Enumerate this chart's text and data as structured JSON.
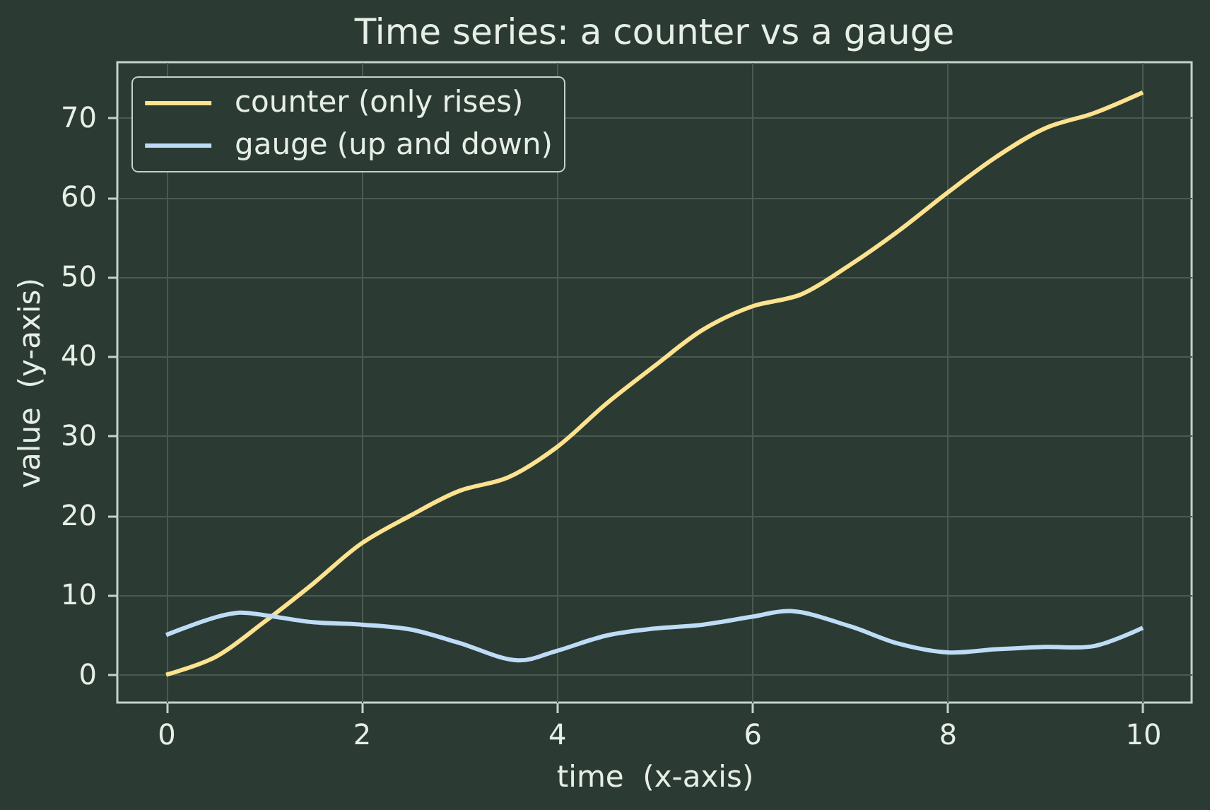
{
  "chart_data": {
    "type": "line",
    "title": "Time series: a counter vs a gauge",
    "xlabel": "time  (x-axis)",
    "ylabel": "value  (y-axis)",
    "x": [
      0,
      0.5,
      1,
      1.5,
      2,
      2.5,
      3,
      3.5,
      4,
      4.5,
      5,
      5.5,
      6,
      6.5,
      7,
      7.5,
      8,
      8.5,
      9,
      9.5,
      10
    ],
    "series": [
      {
        "name": "counter (only rises)",
        "color": "#fde28f",
        "values": [
          0,
          2.2,
          6.6,
          11.4,
          16.5,
          20.0,
          23.1,
          24.8,
          28.6,
          34.0,
          38.8,
          43.4,
          46.3,
          47.8,
          51.5,
          55.8,
          60.6,
          65.1,
          68.7,
          70.6,
          73.2
        ]
      },
      {
        "name": "gauge (up and down)",
        "color": "#bfdcf7",
        "x": [
          0,
          0.5,
          0.75,
          1,
          1.5,
          2,
          2.5,
          3,
          3.6,
          4,
          4.5,
          5,
          5.5,
          6,
          6.4,
          7,
          7.5,
          8,
          8.5,
          9,
          9.5,
          10
        ],
        "values": [
          5.0,
          7.2,
          7.8,
          7.5,
          6.6,
          6.3,
          5.7,
          4.0,
          1.8,
          3.0,
          4.9,
          5.8,
          6.3,
          7.3,
          8.0,
          6.1,
          3.9,
          2.8,
          3.2,
          3.5,
          3.6,
          5.9
        ]
      }
    ],
    "xlim": [
      -0.5,
      10.5
    ],
    "ylim": [
      -3.5,
      77
    ],
    "xticks": [
      0,
      2,
      4,
      6,
      8,
      10
    ],
    "yticks": [
      0,
      10,
      20,
      30,
      40,
      50,
      60,
      70
    ],
    "grid": true,
    "legend": "top left",
    "line_style": "solid"
  }
}
